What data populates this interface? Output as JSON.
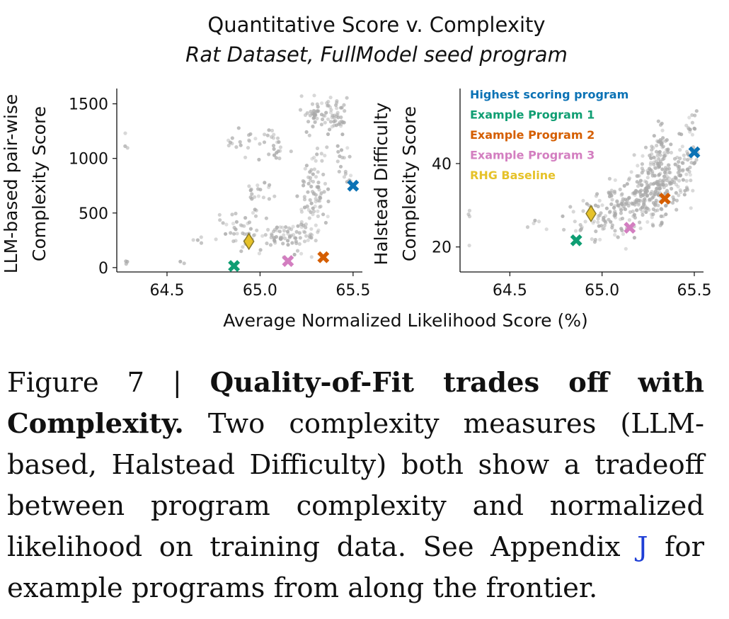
{
  "figure": {
    "title": "Quantitative Score v. Complexity",
    "subtitle": "Rat Dataset, FullModel seed program",
    "shared_xlabel": "Average Normalized Likelihood Score (%)"
  },
  "caption": {
    "label": "Figure 7 | ",
    "bold": "Quality-of-Fit trades off with Complexity.",
    "text_before_ref": " Two complexity measures (LLM-based, Halstead Difficulty) both show a tradeoff between program complexity and normalized likelihood on training data.  See Appendix ",
    "ref": "J",
    "text_after_ref": " for example programs from along the frontier."
  },
  "colors": {
    "cloud": "#a9a9a9",
    "highest": "#0b72b5",
    "example1": "#0f9e73",
    "example2": "#d55e00",
    "example3": "#d37ec0",
    "rhg": "#e6c229"
  },
  "chart_data": [
    {
      "type": "scatter",
      "ylabel": "LLM-based pair-wise\nComplexity Score",
      "xlim": [
        64.23,
        65.55
      ],
      "ylim": [
        -40,
        1640
      ],
      "xticks": [
        64.5,
        65.0,
        65.5
      ],
      "xtick_labels": [
        "64.5",
        "65.0",
        "65.5"
      ],
      "yticks": [
        0,
        500,
        1000,
        1500
      ],
      "ytick_labels": [
        "0",
        "500",
        "1000",
        "1500"
      ],
      "cloud": {
        "name": "",
        "clusters": [
          {
            "x": 64.28,
            "y": 1120,
            "sx": 0.005,
            "sy": 60,
            "n": 3
          },
          {
            "x": 64.28,
            "y": 50,
            "sx": 0.005,
            "sy": 15,
            "n": 3
          },
          {
            "x": 64.65,
            "y": 250,
            "sx": 0.03,
            "sy": 25,
            "n": 4
          },
          {
            "x": 64.6,
            "y": 40,
            "sx": 0.01,
            "sy": 10,
            "n": 2
          },
          {
            "x": 64.86,
            "y": 1120,
            "sx": 0.02,
            "sy": 20,
            "n": 6
          },
          {
            "x": 64.9,
            "y": 330,
            "sx": 0.06,
            "sy": 80,
            "n": 40
          },
          {
            "x": 64.95,
            "y": 680,
            "sx": 0.02,
            "sy": 40,
            "n": 8
          },
          {
            "x": 64.94,
            "y": 1150,
            "sx": 0.04,
            "sy": 70,
            "n": 10
          },
          {
            "x": 65.03,
            "y": 700,
            "sx": 0.04,
            "sy": 40,
            "n": 10
          },
          {
            "x": 65.05,
            "y": 1200,
            "sx": 0.03,
            "sy": 30,
            "n": 10
          },
          {
            "x": 65.1,
            "y": 1050,
            "sx": 0.04,
            "sy": 80,
            "n": 14
          },
          {
            "x": 65.1,
            "y": 280,
            "sx": 0.06,
            "sy": 70,
            "n": 55
          },
          {
            "x": 65.24,
            "y": 260,
            "sx": 0.04,
            "sy": 80,
            "n": 22
          },
          {
            "x": 65.28,
            "y": 900,
            "sx": 0.03,
            "sy": 180,
            "n": 25
          },
          {
            "x": 65.3,
            "y": 600,
            "sx": 0.04,
            "sy": 140,
            "n": 55
          },
          {
            "x": 65.28,
            "y": 1400,
            "sx": 0.03,
            "sy": 70,
            "n": 32
          },
          {
            "x": 65.37,
            "y": 1450,
            "sx": 0.04,
            "sy": 60,
            "n": 32
          },
          {
            "x": 65.42,
            "y": 1330,
            "sx": 0.03,
            "sy": 50,
            "n": 22
          },
          {
            "x": 65.44,
            "y": 1020,
            "sx": 0.03,
            "sy": 80,
            "n": 12
          },
          {
            "x": 65.47,
            "y": 830,
            "sx": 0.02,
            "sy": 60,
            "n": 8
          }
        ]
      },
      "markers": [
        {
          "name": "Highest scoring program",
          "shape": "x",
          "color": "#0b72b5",
          "x": 65.5,
          "y": 750
        },
        {
          "name": "Example Program 1",
          "shape": "x",
          "color": "#0f9e73",
          "x": 64.86,
          "y": 15
        },
        {
          "name": "Example Program 2",
          "shape": "x",
          "color": "#d55e00",
          "x": 65.34,
          "y": 95
        },
        {
          "name": "Example Program 3",
          "shape": "x",
          "color": "#d37ec0",
          "x": 65.15,
          "y": 60
        },
        {
          "name": "RHG Baseline",
          "shape": "diamond",
          "color": "#e6c229",
          "x": 64.94,
          "y": 240
        }
      ]
    },
    {
      "type": "scatter",
      "ylabel": "Halstead Difficulty\nComplexity Score",
      "xlim": [
        64.23,
        65.55
      ],
      "ylim": [
        14,
        58
      ],
      "xticks": [
        64.5,
        65.0,
        65.5
      ],
      "xtick_labels": [
        "64.5",
        "65.0",
        "65.5"
      ],
      "yticks": [
        20,
        40
      ],
      "ytick_labels": [
        "20",
        "40"
      ],
      "legend": {
        "placement": "top-left",
        "entries": [
          {
            "label": "Highest scoring program",
            "color": "#0b72b5"
          },
          {
            "label": "Example Program 1",
            "color": "#0f9e73"
          },
          {
            "label": "Example Program 2",
            "color": "#d55e00"
          },
          {
            "label": "Example Program 3",
            "color": "#d37ec0"
          },
          {
            "label": "RHG Baseline",
            "color": "#e6c229"
          }
        ]
      },
      "cloud": {
        "name": "",
        "clusters": [
          {
            "x": 64.28,
            "y": 24,
            "sx": 0.005,
            "sy": 2.5,
            "n": 4
          },
          {
            "x": 64.65,
            "y": 26,
            "sx": 0.04,
            "sy": 1.5,
            "n": 5
          },
          {
            "x": 64.85,
            "y": 26,
            "sx": 0.03,
            "sy": 2,
            "n": 10
          },
          {
            "x": 64.98,
            "y": 27,
            "sx": 0.05,
            "sy": 3,
            "n": 40
          },
          {
            "x": 65.1,
            "y": 29,
            "sx": 0.05,
            "sy": 3.5,
            "n": 70
          },
          {
            "x": 65.2,
            "y": 32,
            "sx": 0.04,
            "sy": 4,
            "n": 90
          },
          {
            "x": 65.3,
            "y": 36,
            "sx": 0.04,
            "sy": 5,
            "n": 140
          },
          {
            "x": 65.42,
            "y": 38,
            "sx": 0.04,
            "sy": 4.5,
            "n": 70
          },
          {
            "x": 65.48,
            "y": 45,
            "sx": 0.02,
            "sy": 4.5,
            "n": 25
          },
          {
            "x": 65.33,
            "y": 42,
            "sx": 0.02,
            "sy": 3,
            "n": 30
          }
        ]
      },
      "markers": [
        {
          "name": "Highest scoring program",
          "shape": "x",
          "color": "#0b72b5",
          "x": 65.5,
          "y": 42.7
        },
        {
          "name": "Example Program 1",
          "shape": "x",
          "color": "#0f9e73",
          "x": 64.86,
          "y": 21.6
        },
        {
          "name": "Example Program 2",
          "shape": "x",
          "color": "#d55e00",
          "x": 65.34,
          "y": 31.6
        },
        {
          "name": "Example Program 3",
          "shape": "x",
          "color": "#d37ec0",
          "x": 65.15,
          "y": 24.6
        },
        {
          "name": "RHG Baseline",
          "shape": "diamond",
          "color": "#e6c229",
          "x": 64.94,
          "y": 28
        }
      ]
    }
  ]
}
